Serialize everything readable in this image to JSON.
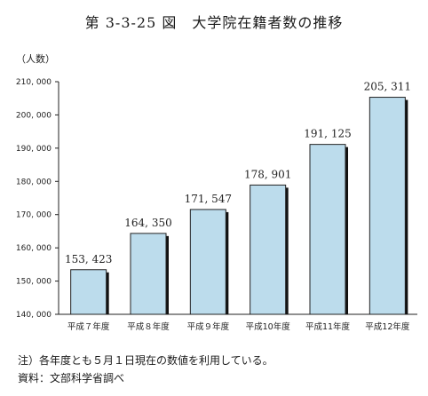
{
  "chart_data": {
    "type": "bar",
    "title": "第 3-3-25 図　大学院在籍者数の推移",
    "ylabel": "（人数）",
    "xlabel": "",
    "categories": [
      "平成７年度",
      "平成８年度",
      "平成９年度",
      "平成10年度",
      "平成11年度",
      "平成12年度"
    ],
    "values": [
      153423,
      164350,
      171547,
      178901,
      191125,
      205311
    ],
    "value_labels": [
      "153, 423",
      "164, 350",
      "171, 547",
      "178, 901",
      "191, 125",
      "205, 311"
    ],
    "ylim": [
      140000,
      210000
    ],
    "yticks": [
      140000,
      150000,
      160000,
      170000,
      180000,
      190000,
      200000,
      210000
    ],
    "ytick_labels": [
      "140, 000",
      "150, 000",
      "160, 000",
      "170, 000",
      "180, 000",
      "190, 000",
      "200, 000",
      "210, 000"
    ],
    "grid": false,
    "bar_color": "#bcdcec",
    "bar_shadow_color": "#111111"
  },
  "footnotes": {
    "note": "注）各年度とも５月１日現在の数値を利用している。",
    "source": "資料：文部科学省調べ"
  }
}
